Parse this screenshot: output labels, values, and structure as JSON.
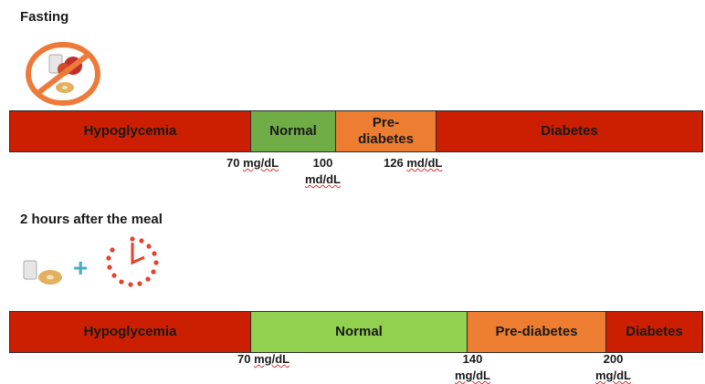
{
  "fasting": {
    "title": "Fasting",
    "icon": "no-food-icon",
    "segments": [
      {
        "label": "Hypoglycemia",
        "color": "#cc1e00"
      },
      {
        "label": "Normal",
        "color": "#70ad47"
      },
      {
        "label": "Pre-\ndiabetes",
        "color": "#ed7d31"
      },
      {
        "label": "Diabetes",
        "color": "#cc1e00"
      }
    ],
    "thresholds": [
      {
        "value": "70",
        "unit": "mg/dL"
      },
      {
        "value": "100",
        "unit": "md/dL"
      },
      {
        "value": "126",
        "unit": "md/dL"
      }
    ]
  },
  "after_meal": {
    "title": "2 hours after the meal",
    "icons": [
      "food-icon",
      "plus-icon",
      "clock-icon"
    ],
    "segments": [
      {
        "label": "Hypoglycemia",
        "color": "#cc1e00"
      },
      {
        "label": "Normal",
        "color": "#92d050"
      },
      {
        "label": "Pre-diabetes",
        "color": "#ed7d31"
      },
      {
        "label": "Diabetes",
        "color": "#cc1e00"
      }
    ],
    "thresholds": [
      {
        "value": "70",
        "unit": "mg/dL"
      },
      {
        "value": "140",
        "unit": "mg/dL"
      },
      {
        "value": "200",
        "unit": "mg/dL"
      }
    ]
  }
}
